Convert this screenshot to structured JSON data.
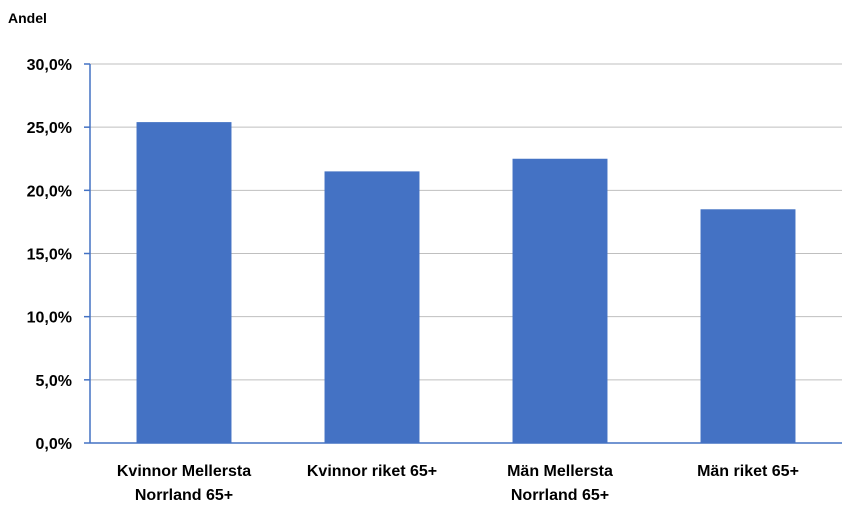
{
  "chart_data": {
    "type": "bar",
    "ylabel": "Andel",
    "xlabel": "",
    "categories": [
      [
        "Kvinnor Mellersta",
        "Norrland 65+"
      ],
      [
        "Kvinnor riket 65+"
      ],
      [
        "Män Mellersta",
        "Norrland 65+"
      ],
      [
        "Män riket 65+"
      ]
    ],
    "values": [
      25.4,
      21.5,
      22.5,
      18.5
    ],
    "ylim": [
      0,
      30
    ],
    "yticks": [
      "0,0%",
      "5,0%",
      "10,0%",
      "15,0%",
      "20,0%",
      "25,0%",
      "30,0%"
    ],
    "grid": true,
    "legend": "none",
    "colors": {
      "bar": "#4472C4",
      "axis": "#4472C4",
      "grid": "#BFBFBF"
    }
  }
}
